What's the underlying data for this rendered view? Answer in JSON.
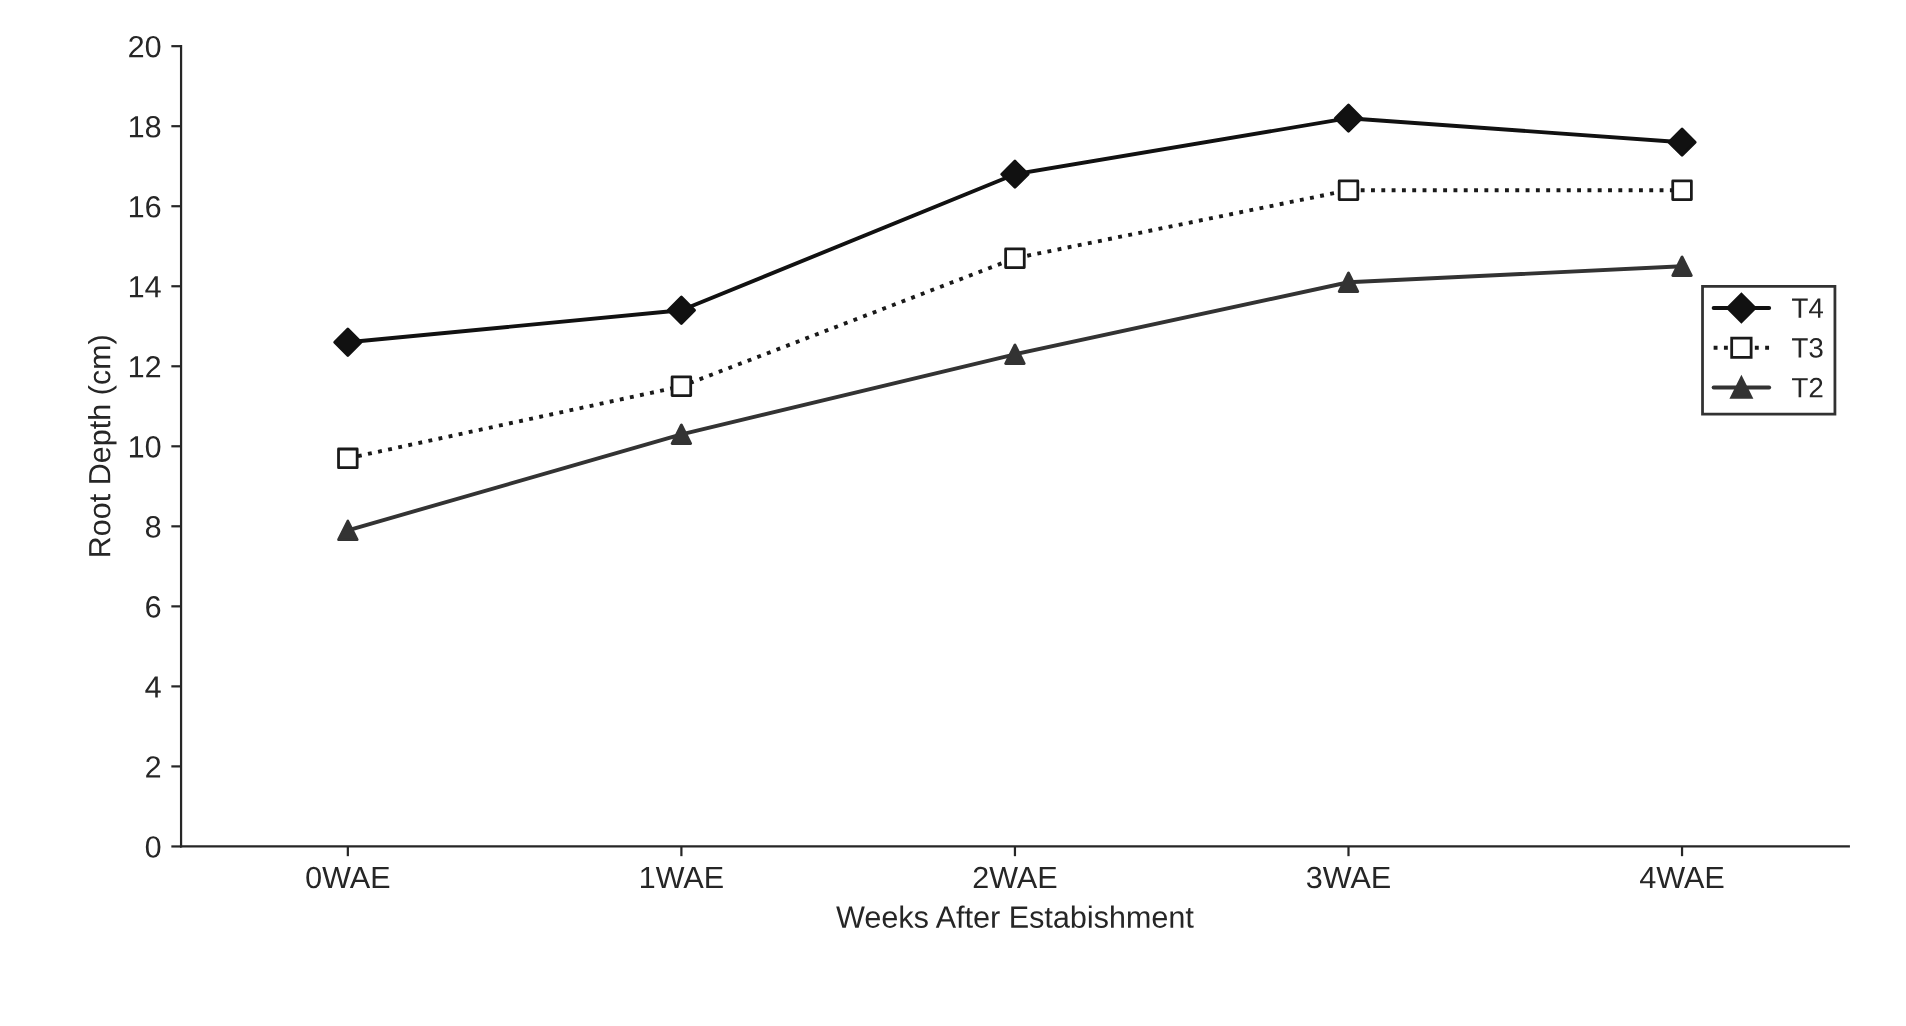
{
  "chart_data": {
    "type": "line",
    "xlabel": "Weeks After Estabishment",
    "ylabel": "Root Depth (cm)",
    "categories": [
      "0WAE",
      "1WAE",
      "2WAE",
      "3WAE",
      "4WAE"
    ],
    "series": [
      {
        "name": "T4",
        "color": "#111111",
        "marker": "diamond",
        "line_style": "solid",
        "values": [
          12.6,
          13.4,
          16.8,
          18.2,
          17.6
        ]
      },
      {
        "name": "T3",
        "color": "#1a1a1a",
        "marker": "square",
        "line_style": "dotted",
        "values": [
          9.7,
          11.5,
          14.7,
          16.4,
          16.4
        ]
      },
      {
        "name": "T2",
        "color": "#333333",
        "marker": "triangle",
        "line_style": "solid",
        "values": [
          7.9,
          10.3,
          12.3,
          14.1,
          14.5
        ]
      }
    ],
    "ylim": [
      0,
      20
    ],
    "yticks": [
      0,
      2,
      4,
      6,
      8,
      10,
      12,
      14,
      16,
      18,
      20
    ],
    "grid": false,
    "legend": "right"
  }
}
